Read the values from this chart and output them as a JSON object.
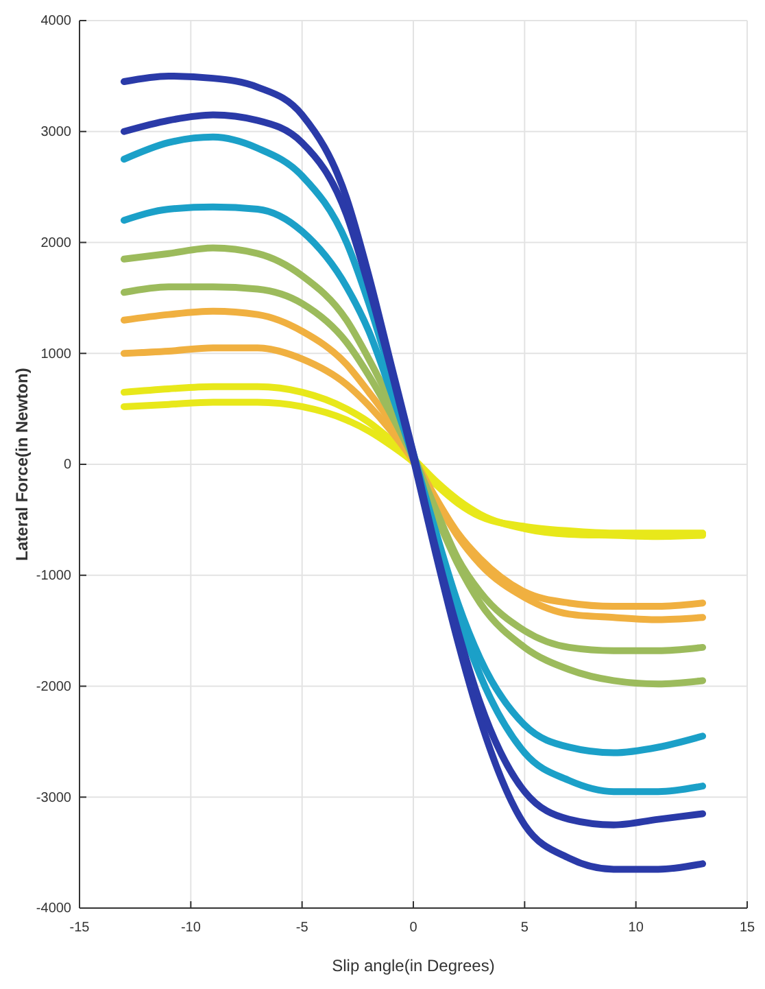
{
  "chart_data": {
    "type": "line",
    "xlabel": "Slip angle(in Degrees)",
    "ylabel": "Lateral Force(in Newton)",
    "x": [
      -13,
      -11,
      -9,
      -7,
      -5,
      -3,
      -2,
      -1,
      0,
      1,
      2,
      3,
      5,
      7,
      9,
      11,
      13
    ],
    "xlim": [
      -15,
      15
    ],
    "xticks": [
      -15,
      -10,
      -5,
      0,
      5,
      10,
      15
    ],
    "ylim": [
      -4000,
      4000
    ],
    "yticks": [
      -4000,
      -3000,
      -2000,
      -1000,
      0,
      1000,
      2000,
      3000,
      4000
    ],
    "grid": true,
    "marker": "none",
    "line_style": "solid",
    "series": [
      {
        "color": "#e8e81a",
        "values": [
          650,
          680,
          700,
          700,
          650,
          500,
          380,
          220,
          50,
          -150,
          -320,
          -450,
          -580,
          -630,
          -640,
          -650,
          -640
        ]
      },
      {
        "color": "#e8e81a",
        "values": [
          520,
          540,
          560,
          560,
          520,
          400,
          300,
          170,
          20,
          -180,
          -350,
          -470,
          -560,
          -600,
          -620,
          -620,
          -620
        ]
      },
      {
        "color": "#f0b040",
        "values": [
          1300,
          1350,
          1380,
          1350,
          1200,
          900,
          650,
          380,
          60,
          -300,
          -620,
          -850,
          -1150,
          -1250,
          -1280,
          -1280,
          -1250
        ]
      },
      {
        "color": "#f0b040",
        "values": [
          1000,
          1020,
          1050,
          1050,
          950,
          720,
          530,
          300,
          30,
          -320,
          -650,
          -900,
          -1200,
          -1350,
          -1380,
          -1400,
          -1380
        ]
      },
      {
        "color": "#9cbb5c",
        "values": [
          1850,
          1900,
          1950,
          1900,
          1700,
          1300,
          950,
          550,
          80,
          -400,
          -850,
          -1150,
          -1500,
          -1650,
          -1680,
          -1680,
          -1650
        ]
      },
      {
        "color": "#9cbb5c",
        "values": [
          1550,
          1600,
          1600,
          1580,
          1450,
          1100,
          800,
          450,
          50,
          -450,
          -900,
          -1250,
          -1650,
          -1850,
          -1950,
          -1980,
          -1950
        ]
      },
      {
        "color": "#1ba0c8",
        "values": [
          2750,
          2900,
          2950,
          2850,
          2600,
          2000,
          1450,
          800,
          100,
          -600,
          -1250,
          -1750,
          -2350,
          -2550,
          -2600,
          -2550,
          -2450
        ]
      },
      {
        "color": "#1ba0c8",
        "values": [
          2200,
          2300,
          2320,
          2300,
          2100,
          1600,
          1200,
          650,
          50,
          -650,
          -1350,
          -1900,
          -2600,
          -2850,
          -2950,
          -2950,
          -2900
        ]
      },
      {
        "color": "#2a3aa8",
        "values": [
          3450,
          3500,
          3480,
          3400,
          3150,
          2400,
          1700,
          900,
          100,
          -750,
          -1500,
          -2150,
          -2950,
          -3200,
          -3250,
          -3200,
          -3150
        ]
      },
      {
        "color": "#2a3aa8",
        "values": [
          3000,
          3100,
          3150,
          3100,
          2900,
          2250,
          1600,
          850,
          50,
          -800,
          -1600,
          -2300,
          -3250,
          -3550,
          -3650,
          -3650,
          -3600
        ]
      }
    ]
  }
}
